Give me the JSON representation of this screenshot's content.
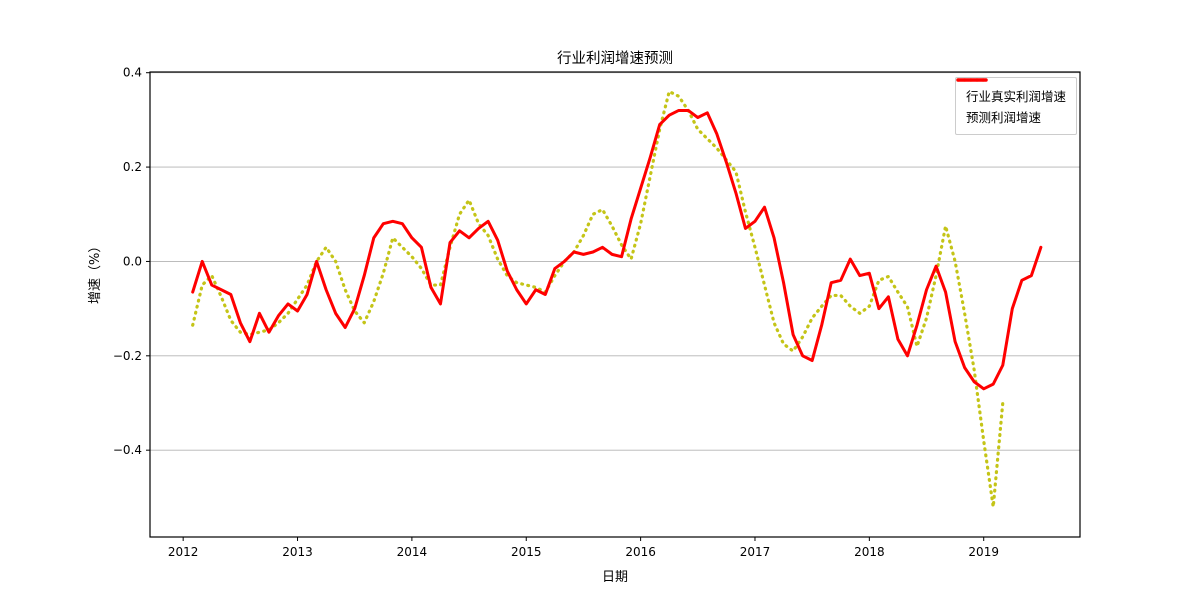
{
  "chart_data": {
    "type": "line",
    "title": "行业利润增速预测",
    "xlabel": "日期",
    "ylabel": "增速（%）",
    "x_start": {
      "year": 2012,
      "month": 2
    },
    "x_frequency": "monthly",
    "xticks": [
      2012,
      2013,
      2014,
      2015,
      2016,
      2017,
      2018,
      2019
    ],
    "ytick_labels": [
      "0.4",
      "0.2",
      "0.0",
      "−0.2",
      "−0.4"
    ],
    "ytick_values": [
      0.4,
      0.2,
      0.0,
      -0.2,
      -0.4
    ],
    "xlim": [
      2011.71,
      2019.842
    ],
    "ylim": [
      -0.584,
      0.4015
    ],
    "grid": "horizontal",
    "grid_color": "#b3b3b3",
    "spine_color": "#000000",
    "legend_position": "upper right",
    "series": [
      {
        "name": "行业真实利润增速",
        "color": "#c4c417",
        "style": "dotted",
        "values": [
          -0.135,
          -0.05,
          -0.03,
          -0.075,
          -0.125,
          -0.15,
          -0.155,
          -0.15,
          -0.145,
          -0.13,
          -0.11,
          -0.08,
          -0.05,
          0.0,
          0.03,
          0.0,
          -0.06,
          -0.105,
          -0.13,
          -0.085,
          -0.025,
          0.05,
          0.03,
          0.01,
          -0.015,
          -0.05,
          -0.05,
          0.03,
          0.1,
          0.13,
          0.08,
          0.055,
          0.005,
          -0.03,
          -0.045,
          -0.05,
          -0.055,
          -0.065,
          -0.03,
          0.0,
          0.02,
          0.055,
          0.1,
          0.11,
          0.075,
          0.035,
          0.005,
          0.08,
          0.18,
          0.28,
          0.36,
          0.35,
          0.32,
          0.28,
          0.26,
          0.24,
          0.215,
          0.19,
          0.105,
          0.03,
          -0.05,
          -0.13,
          -0.175,
          -0.19,
          -0.16,
          -0.12,
          -0.095,
          -0.072,
          -0.072,
          -0.095,
          -0.11,
          -0.095,
          -0.04,
          -0.032,
          -0.065,
          -0.096,
          -0.18,
          -0.12,
          -0.03,
          0.075,
          0.0,
          -0.11,
          -0.23,
          -0.38,
          -0.52,
          -0.3
        ]
      },
      {
        "name": "预测利润增速",
        "color": "#ff0000",
        "style": "solid",
        "values": [
          -0.065,
          0.0,
          -0.05,
          -0.06,
          -0.07,
          -0.13,
          -0.17,
          -0.11,
          -0.15,
          -0.115,
          -0.09,
          -0.105,
          -0.07,
          0.0,
          -0.06,
          -0.11,
          -0.14,
          -0.1,
          -0.03,
          0.05,
          0.08,
          0.085,
          0.08,
          0.05,
          0.03,
          -0.055,
          -0.09,
          0.04,
          0.065,
          0.05,
          0.07,
          0.085,
          0.045,
          -0.02,
          -0.06,
          -0.09,
          -0.06,
          -0.07,
          -0.015,
          0.0,
          0.02,
          0.015,
          0.02,
          0.03,
          0.015,
          0.01,
          0.09,
          0.155,
          0.22,
          0.29,
          0.31,
          0.32,
          0.32,
          0.305,
          0.315,
          0.27,
          0.21,
          0.145,
          0.07,
          0.085,
          0.115,
          0.05,
          -0.045,
          -0.155,
          -0.2,
          -0.21,
          -0.135,
          -0.045,
          -0.04,
          0.005,
          -0.03,
          -0.025,
          -0.1,
          -0.075,
          -0.165,
          -0.2,
          -0.135,
          -0.06,
          -0.01,
          -0.065,
          -0.17,
          -0.225,
          -0.255,
          -0.27,
          -0.26,
          -0.22,
          -0.1,
          -0.04,
          -0.03,
          0.03
        ]
      }
    ]
  }
}
